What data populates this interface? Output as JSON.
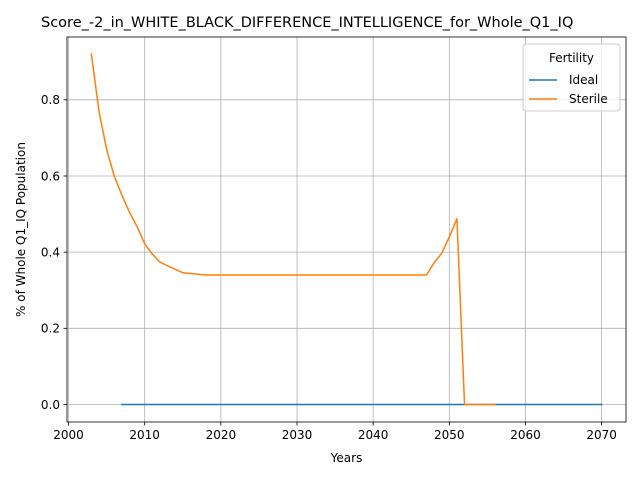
{
  "chart_data": {
    "type": "line",
    "title": "Score_-2_in_WHITE_BLACK_DIFFERENCE_INTELLIGENCE_for_Whole_Q1_IQ",
    "xlabel": "Years",
    "ylabel": "% of Whole Q1_IQ Population",
    "xlim": [
      1999.8,
      2073.2
    ],
    "ylim": [
      -0.046,
      0.965
    ],
    "xticks": [
      2000,
      2010,
      2020,
      2030,
      2040,
      2050,
      2060,
      2070
    ],
    "xtick_labels": [
      "2000",
      "2010",
      "2020",
      "2030",
      "2040",
      "2050",
      "2060",
      "2070"
    ],
    "yticks": [
      0.0,
      0.2,
      0.4,
      0.6,
      0.8
    ],
    "ytick_labels": [
      "0.0",
      "0.2",
      "0.4",
      "0.6",
      "0.8"
    ],
    "grid": true,
    "legend": {
      "title": "Fertility",
      "placement": "top-right"
    },
    "series": [
      {
        "name": "Ideal",
        "color": "#1f77b4",
        "x": [
          2007,
          2070
        ],
        "y": [
          0.0,
          0.0
        ]
      },
      {
        "name": "Sterile",
        "color": "#ff7f0e",
        "x": [
          2003,
          2004,
          2005,
          2006,
          2007,
          2008,
          2009,
          2010,
          2011,
          2012,
          2013,
          2014,
          2015,
          2016,
          2017,
          2018,
          2019,
          2020,
          2025,
          2030,
          2035,
          2040,
          2045,
          2047,
          2048,
          2049,
          2050,
          2051,
          2052,
          2053,
          2054,
          2055,
          2056
        ],
        "y": [
          0.92,
          0.77,
          0.67,
          0.6,
          0.55,
          0.505,
          0.467,
          0.422,
          0.395,
          0.374,
          0.364,
          0.355,
          0.346,
          0.344,
          0.342,
          0.34,
          0.34,
          0.34,
          0.34,
          0.34,
          0.34,
          0.34,
          0.34,
          0.34,
          0.372,
          0.397,
          0.44,
          0.488,
          0.0,
          0.0,
          0.0,
          0.0,
          0.0
        ]
      }
    ]
  }
}
